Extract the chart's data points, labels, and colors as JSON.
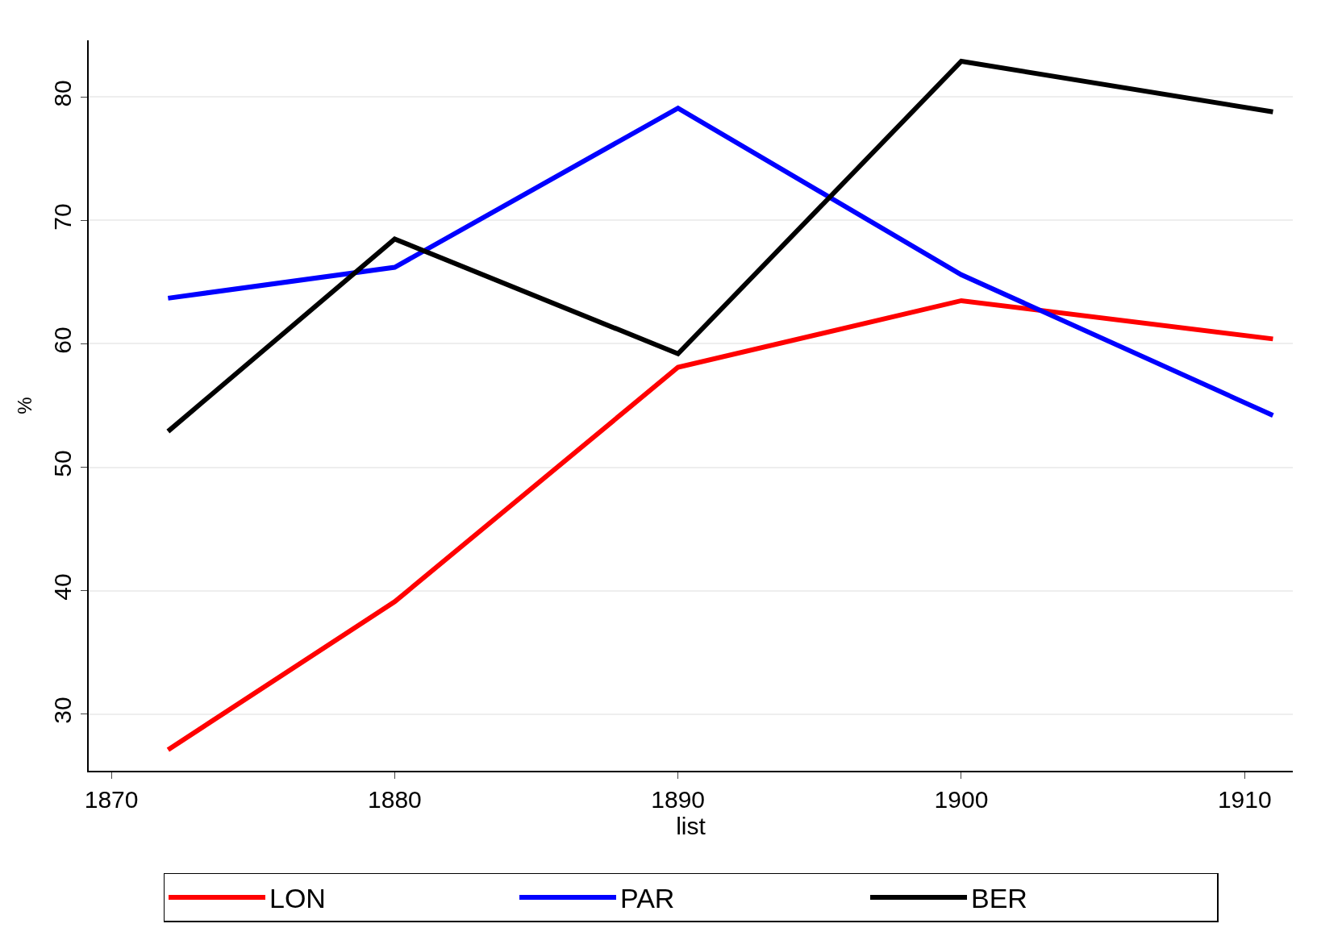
{
  "chart_data": {
    "type": "line",
    "xlabel": "list",
    "ylabel": "%",
    "x": [
      1872,
      1880,
      1890,
      1900,
      1911
    ],
    "series": [
      {
        "name": "LON",
        "color": "#ff0000",
        "values": [
          27.1,
          39.1,
          58.1,
          63.5,
          60.4
        ]
      },
      {
        "name": "PAR",
        "color": "#0000ff",
        "values": [
          63.7,
          66.2,
          79.1,
          65.6,
          54.2
        ]
      },
      {
        "name": "BER",
        "color": "#000000",
        "values": [
          52.9,
          68.5,
          59.2,
          82.9,
          78.8
        ]
      }
    ],
    "xlim": [
      1869.2,
      1911.7
    ],
    "xticks": [
      1870,
      1880,
      1890,
      1900,
      1910
    ],
    "ylim": [
      25.4,
      84.6
    ],
    "yticks": [
      30,
      40,
      50,
      60,
      70,
      80
    ],
    "grid": "y",
    "legend": "bottom",
    "marker": "none",
    "line_style": "solid"
  }
}
